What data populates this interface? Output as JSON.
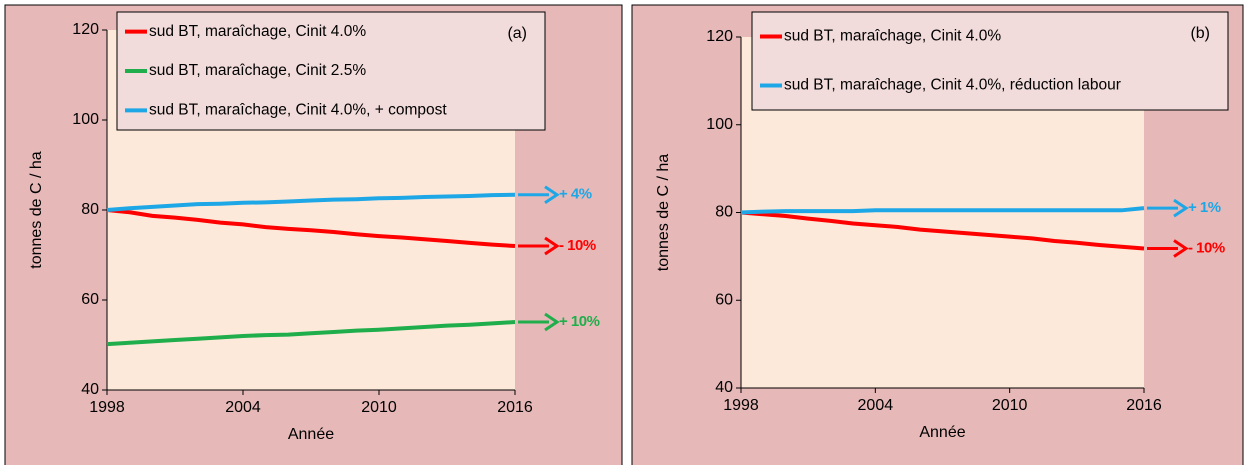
{
  "chart_data": [
    {
      "type": "line",
      "panel_label": "(a)",
      "x_label": "Année",
      "y_label": "tonnes de C / ha",
      "x": [
        1998,
        1999,
        2000,
        2001,
        2002,
        2003,
        2004,
        2005,
        2006,
        2007,
        2008,
        2009,
        2010,
        2011,
        2012,
        2013,
        2014,
        2015,
        2016
      ],
      "xlim": [
        1998,
        2016
      ],
      "xticks": [
        1998,
        2004,
        2010,
        2016
      ],
      "ylim": [
        40,
        120
      ],
      "yticks": [
        40,
        60,
        80,
        100,
        120
      ],
      "legend": "top",
      "series": [
        {
          "name": "sud BT, maraîchage, Cinit 4.0%",
          "color": "#ff0000",
          "end_label": "- 10%",
          "values": [
            80,
            79.5,
            78.7,
            78.3,
            77.8,
            77.2,
            76.8,
            76.2,
            75.8,
            75.5,
            75.1,
            74.6,
            74.2,
            73.9,
            73.5,
            73.1,
            72.7,
            72.3,
            72
          ]
        },
        {
          "name": "sud BT, maraîchage, Cinit 2.5%",
          "color": "#1fae4b",
          "end_label": "+ 10%",
          "values": [
            50.2,
            50.5,
            50.8,
            51.1,
            51.4,
            51.7,
            52,
            52.2,
            52.3,
            52.6,
            52.9,
            53.2,
            53.4,
            53.7,
            54,
            54.3,
            54.5,
            54.8,
            55.1
          ]
        },
        {
          "name": "sud BT, maraîchage, Cinit 4.0%, + compost",
          "color": "#1ea7e6",
          "end_label": "+ 4%",
          "values": [
            80,
            80.4,
            80.7,
            81,
            81.3,
            81.4,
            81.6,
            81.7,
            81.9,
            82.1,
            82.3,
            82.4,
            82.6,
            82.7,
            82.9,
            83,
            83.1,
            83.3,
            83.4
          ]
        }
      ]
    },
    {
      "type": "line",
      "panel_label": "(b)",
      "x_label": "Année",
      "y_label": "tonnes de C / ha",
      "x": [
        1998,
        1999,
        2000,
        2001,
        2002,
        2003,
        2004,
        2005,
        2006,
        2007,
        2008,
        2009,
        2010,
        2011,
        2012,
        2013,
        2014,
        2015,
        2016
      ],
      "xlim": [
        1998,
        2016
      ],
      "xticks": [
        1998,
        2004,
        2010,
        2016
      ],
      "ylim": [
        40,
        120
      ],
      "yticks": [
        40,
        60,
        80,
        100,
        120
      ],
      "legend": "top",
      "series": [
        {
          "name": "sud BT, maraîchage, Cinit 4.0%",
          "color": "#ff0000",
          "end_label": "- 10%",
          "values": [
            80,
            79.6,
            79.2,
            78.6,
            78.1,
            77.5,
            77.1,
            76.7,
            76.1,
            75.7,
            75.3,
            74.9,
            74.5,
            74.1,
            73.5,
            73.1,
            72.6,
            72.2,
            71.8
          ]
        },
        {
          "name": "sud BT, maraîchage, Cinit 4.0%, réduction labour",
          "color": "#1ea7e6",
          "end_label": "+ 1%",
          "values": [
            80,
            80.2,
            80.3,
            80.3,
            80.3,
            80.3,
            80.5,
            80.5,
            80.5,
            80.5,
            80.5,
            80.5,
            80.5,
            80.5,
            80.5,
            80.5,
            80.5,
            80.5,
            81
          ]
        }
      ]
    }
  ]
}
